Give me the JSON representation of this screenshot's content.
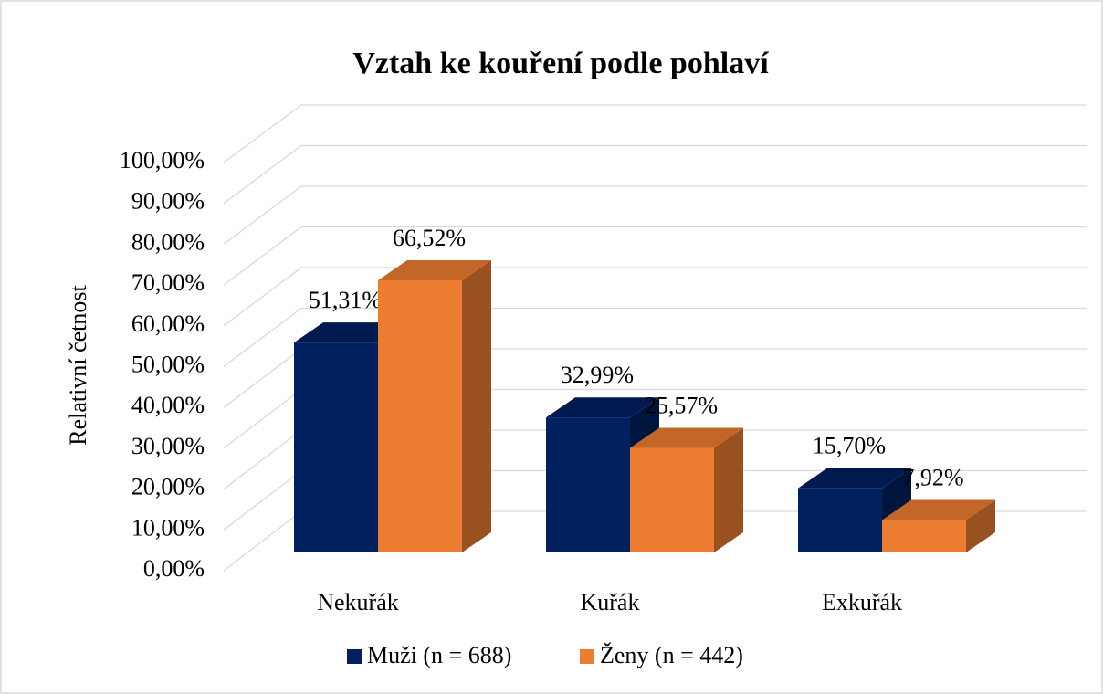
{
  "chart_data": {
    "type": "bar3d",
    "title": "Vztah ke kouření podle pohlaví",
    "y_label": "Relativní četnost",
    "categories": [
      "Nekuřák",
      "Kuřák",
      "Exkuřák"
    ],
    "series": [
      {
        "name": "Muži (n = 688)",
        "color": "#002060",
        "values": [
          51.31,
          32.99,
          15.7
        ],
        "value_labels": [
          "51,31%",
          "32,99%",
          "15,70%"
        ]
      },
      {
        "name": "Ženy (n = 442)",
        "color": "#ed7d31",
        "values": [
          66.52,
          25.57,
          7.92
        ],
        "value_labels": [
          "66,52%",
          "25,57%",
          "7,92%"
        ]
      }
    ],
    "ylim": [
      0,
      100
    ],
    "yticks": [
      {
        "value": 0,
        "label": "0,00%"
      },
      {
        "value": 10,
        "label": "10,00%"
      },
      {
        "value": 20,
        "label": "20,00%"
      },
      {
        "value": 30,
        "label": "30,00%"
      },
      {
        "value": 40,
        "label": "40,00%"
      },
      {
        "value": 50,
        "label": "50,00%"
      },
      {
        "value": 60,
        "label": "60,00%"
      },
      {
        "value": 70,
        "label": "70,00%"
      },
      {
        "value": 80,
        "label": "80,00%"
      },
      {
        "value": 90,
        "label": "90,00%"
      },
      {
        "value": 100,
        "label": "100,00%"
      }
    ],
    "grid": true,
    "legend": "bottom"
  }
}
